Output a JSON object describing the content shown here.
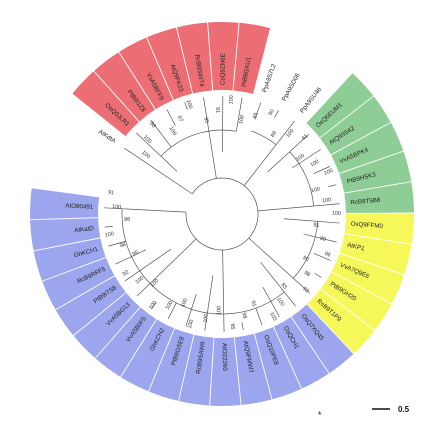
{
  "colors": {
    "background": "#ffffff",
    "clade_red": "#ec6e74",
    "clade_green": "#8fcd96",
    "clade_yellow": "#f6f85a",
    "clade_blue": "#9ca6ee",
    "branch": "#555555"
  },
  "leaves": [
    {
      "label": "AtKdtA",
      "clade": "none"
    },
    {
      "label": "OsQ0JLR1",
      "clade": "red"
    },
    {
      "label": "PtB9I1Z8",
      "clade": "red"
    },
    {
      "label": "VvA5BFF9",
      "clade": "red"
    },
    {
      "label": "AtQ9FK23",
      "clade": "red"
    },
    {
      "label": "RcB9SWT4",
      "clade": "red"
    },
    {
      "label": "CsQ9ZN6E",
      "clade": "red"
    },
    {
      "label": "PtB9GXU1",
      "clade": "red"
    },
    {
      "label": "PpA9S7L2",
      "clade": "none"
    },
    {
      "label": "PpA9SD06",
      "clade": "none"
    },
    {
      "label": "PpA9SU46",
      "clade": "none"
    },
    {
      "label": "OsQ6EUM1",
      "clade": "green"
    },
    {
      "label": "AtQ9S542",
      "clade": "green"
    },
    {
      "label": "VvA5BPK4",
      "clade": "green"
    },
    {
      "label": "PtB9HSK3",
      "clade": "green"
    },
    {
      "label": "RcB9T5B8",
      "clade": "green"
    },
    {
      "label": "OsQ9FFM0",
      "clade": "yellow"
    },
    {
      "label": "AtKP1",
      "clade": "yellow"
    },
    {
      "label": "VvA7Q9E6",
      "clade": "yellow"
    },
    {
      "label": "PtB9GH20",
      "clade": "yellow"
    },
    {
      "label": "RcB9T1P9",
      "clade": "yellow"
    },
    {
      "label": "OsQ7XQ45",
      "clade": "blue"
    },
    {
      "label": "OsQCH1",
      "clade": "blue"
    },
    {
      "label": "OsQ10PE8",
      "clade": "blue"
    },
    {
      "label": "AtQ9FMW7",
      "clade": "blue"
    },
    {
      "label": "AtO22260",
      "clade": "blue"
    },
    {
      "label": "RcB9SAW9",
      "clade": "blue"
    },
    {
      "label": "PtB9GSE9",
      "clade": "blue"
    },
    {
      "label": "GhKCH2",
      "clade": "blue"
    },
    {
      "label": "VvA5B0F5",
      "clade": "blue"
    },
    {
      "label": "VvA5BG13",
      "clade": "blue"
    },
    {
      "label": "PtB9I7S8",
      "clade": "blue"
    },
    {
      "label": "RcB9RFF5",
      "clade": "blue"
    },
    {
      "label": "GhKCH1",
      "clade": "blue"
    },
    {
      "label": "AtKatD",
      "clade": "blue"
    },
    {
      "label": "AtO80491",
      "clade": "blue"
    }
  ],
  "bootstrap_values": [
    "100",
    "100",
    "88",
    "100",
    "67",
    "100",
    "95",
    "91",
    "100",
    "100",
    "65",
    "90",
    "89",
    "100",
    "61",
    "100",
    "100",
    "100",
    "100",
    "100",
    "100",
    "91",
    "90",
    "96",
    "90",
    "98",
    "93",
    "83",
    "100",
    "100",
    "91",
    "98",
    "95",
    "100",
    "100",
    "100",
    "100",
    "100",
    "100",
    "100",
    "100",
    "92",
    "95",
    "98",
    "100",
    "86",
    "100",
    "91"
  ],
  "markers": {
    "asterisk": "*"
  },
  "scale_bar": {
    "label": "0.5"
  }
}
